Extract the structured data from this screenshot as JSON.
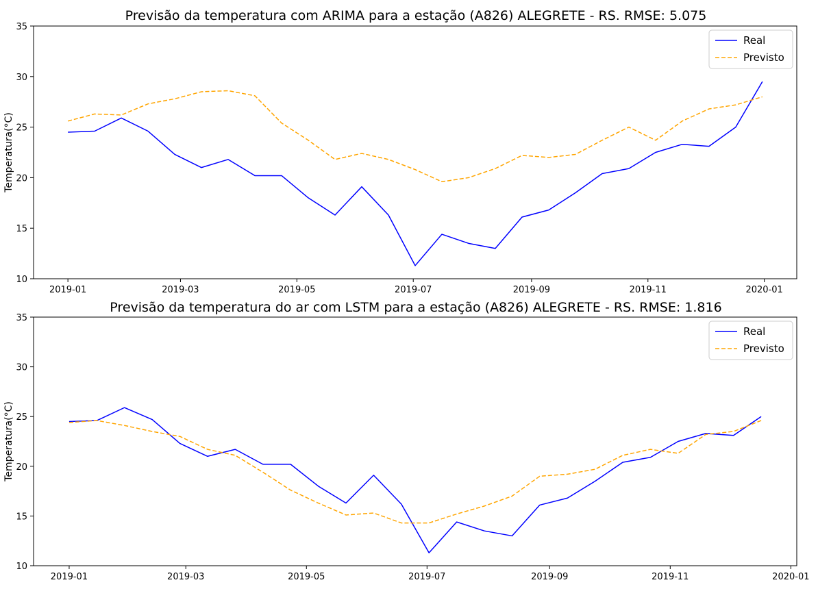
{
  "chart_data": [
    {
      "type": "line",
      "title": "Previsão da temperatura com ARIMA para a estação (A826) ALEGRETE - RS. RMSE: 5.075",
      "xlabel": "",
      "ylabel": "Temperatura(°C)",
      "ylim": [
        10,
        35
      ],
      "yticks": [
        10,
        15,
        20,
        25,
        30,
        35
      ],
      "xlim": [
        "2018-12-14",
        "2020-01-18"
      ],
      "xticks": [
        "2019-01",
        "2019-03",
        "2019-05",
        "2019-07",
        "2019-09",
        "2019-11",
        "2020-01"
      ],
      "legend": "top-right",
      "grid": false,
      "x": [
        "2019-01-01",
        "2019-01-15",
        "2019-01-29",
        "2019-02-12",
        "2019-02-26",
        "2019-03-12",
        "2019-03-26",
        "2019-04-09",
        "2019-04-23",
        "2019-05-07",
        "2019-05-21",
        "2019-06-04",
        "2019-06-18",
        "2019-07-02",
        "2019-07-16",
        "2019-07-30",
        "2019-08-13",
        "2019-08-27",
        "2019-09-10",
        "2019-09-24",
        "2019-10-08",
        "2019-10-22",
        "2019-11-05",
        "2019-11-19",
        "2019-12-03",
        "2019-12-17",
        "2019-12-31"
      ],
      "series": [
        {
          "name": "Real",
          "color": "#0000ff",
          "style": "solid",
          "values": [
            24.5,
            24.6,
            25.9,
            24.6,
            22.3,
            21.0,
            21.8,
            20.2,
            20.2,
            18.0,
            16.3,
            19.1,
            16.3,
            11.3,
            14.4,
            13.5,
            13.0,
            16.1,
            16.8,
            18.5,
            20.4,
            20.9,
            22.5,
            23.3,
            23.1,
            25.0,
            29.5
          ]
        },
        {
          "name": "Previsto",
          "color": "#ffa500",
          "style": "dashed",
          "values": [
            25.6,
            26.3,
            26.2,
            27.3,
            27.8,
            28.5,
            28.6,
            28.1,
            25.4,
            23.7,
            21.8,
            22.4,
            21.8,
            20.8,
            19.6,
            20.0,
            20.9,
            22.2,
            22.0,
            22.3,
            23.7,
            25.0,
            23.7,
            25.6,
            26.8,
            27.2,
            28.0
          ]
        }
      ]
    },
    {
      "type": "line",
      "title": "Previsão da temperatura do ar com LSTM para a estação (A826) ALEGRETE - RS. RMSE: 1.816",
      "xlabel": "",
      "ylabel": "Temperatura(°C)",
      "ylim": [
        10,
        35
      ],
      "yticks": [
        10,
        15,
        20,
        25,
        30,
        35
      ],
      "xlim": [
        "2018-12-14",
        "2020-01-04"
      ],
      "xticks": [
        "2019-01",
        "2019-03",
        "2019-05",
        "2019-07",
        "2019-09",
        "2019-11",
        "2020-01"
      ],
      "legend": "top-right",
      "grid": false,
      "x": [
        "2019-01-01",
        "2019-01-15",
        "2019-01-29",
        "2019-02-12",
        "2019-02-26",
        "2019-03-12",
        "2019-03-26",
        "2019-04-09",
        "2019-04-23",
        "2019-05-07",
        "2019-05-21",
        "2019-06-04",
        "2019-06-18",
        "2019-07-02",
        "2019-07-16",
        "2019-07-30",
        "2019-08-13",
        "2019-08-27",
        "2019-09-10",
        "2019-09-24",
        "2019-10-08",
        "2019-10-22",
        "2019-11-05",
        "2019-11-19",
        "2019-12-03",
        "2019-12-17"
      ],
      "series": [
        {
          "name": "Real",
          "color": "#0000ff",
          "style": "solid",
          "values": [
            24.5,
            24.6,
            25.9,
            24.7,
            22.3,
            21.0,
            21.7,
            20.2,
            20.2,
            18.0,
            16.3,
            19.1,
            16.2,
            11.3,
            14.4,
            13.5,
            13.0,
            16.1,
            16.8,
            18.5,
            20.4,
            20.9,
            22.5,
            23.3,
            23.1,
            25.0
          ]
        },
        {
          "name": "Previsto",
          "color": "#ffa500",
          "style": "dashed",
          "values": [
            24.4,
            24.6,
            24.1,
            23.5,
            23.0,
            21.7,
            21.1,
            19.4,
            17.6,
            16.3,
            15.1,
            15.3,
            14.3,
            14.3,
            15.2,
            16.0,
            17.0,
            19.0,
            19.2,
            19.7,
            21.1,
            21.7,
            21.3,
            23.2,
            23.5,
            24.6
          ]
        }
      ]
    }
  ]
}
